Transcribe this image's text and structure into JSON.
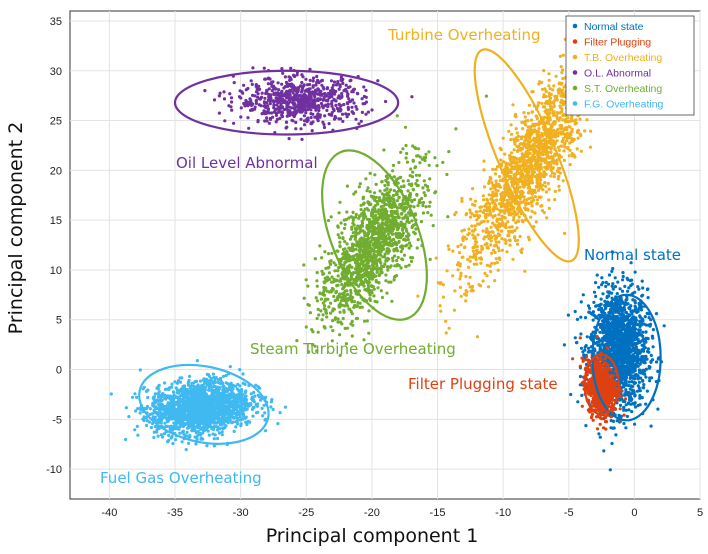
{
  "chart_data": {
    "type": "scatter",
    "title": "",
    "xlabel": "Principal component 1",
    "ylabel": "Principal component 2",
    "xlim": [
      -43,
      5
    ],
    "ylim": [
      -13,
      36
    ],
    "xticks": [
      -40,
      -35,
      -30,
      -25,
      -20,
      -15,
      -10,
      -5,
      0,
      5
    ],
    "yticks": [
      -10,
      -5,
      0,
      5,
      10,
      15,
      20,
      25,
      30,
      35
    ],
    "grid": true,
    "legend_position": "top-right",
    "series": [
      {
        "name": "Normal state",
        "label": "Normal state",
        "color": "#0070C0",
        "n": 1700,
        "center": [
          -1.2,
          2.0
        ],
        "radii": [
          2.2,
          6.0
        ],
        "angle_deg": 0,
        "ellipse": {
          "center": [
            -0.6,
            1.2
          ],
          "rx": 2.6,
          "ry": 6.3,
          "angle_deg": 0
        }
      },
      {
        "name": "Filter Plugging",
        "label": "Filter Plugging state",
        "color": "#E04010",
        "n": 800,
        "center": [
          -2.6,
          -1.7
        ],
        "radii": [
          1.1,
          2.8
        ],
        "angle_deg": 5,
        "ellipse": {
          "center": [
            -2.5,
            -1.5
          ],
          "rx": 1.3,
          "ry": 3.0,
          "angle_deg": 0
        }
      },
      {
        "name": "T.B. Overheating",
        "label": "Turbine Overheating",
        "color": "#F0B020",
        "n": 1600,
        "center": [
          -8.0,
          20.5
        ],
        "radii": [
          2.4,
          11.5
        ],
        "angle_deg": -23,
        "ellipse": {
          "center": [
            -8.2,
            21.5
          ],
          "rx": 2.2,
          "ry": 11.5,
          "angle_deg": -23
        }
      },
      {
        "name": "O.L. Abnormal",
        "label": "Oil Level Abnormal",
        "color": "#7030A0",
        "n": 700,
        "center": [
          -25.5,
          27.0
        ],
        "radii": [
          4.8,
          2.3
        ],
        "angle_deg": 0,
        "ellipse": {
          "center": [
            -26.5,
            26.8
          ],
          "rx": 8.5,
          "ry": 3.2,
          "angle_deg": 0
        }
      },
      {
        "name": "S.T. Overheating",
        "label": "Steam Turbine Overheating",
        "color": "#70AD30",
        "n": 1400,
        "center": [
          -20.0,
          12.5
        ],
        "radii": [
          2.6,
          8.0
        ],
        "angle_deg": -22,
        "ellipse": {
          "center": [
            -19.8,
            13.5
          ],
          "rx": 3.3,
          "ry": 9.0,
          "angle_deg": -22
        }
      },
      {
        "name": "F.G. Overheating",
        "label": "Fuel Gas Overheating",
        "color": "#40B8F0",
        "n": 1800,
        "center": [
          -33.0,
          -3.8
        ],
        "radii": [
          3.8,
          2.6
        ],
        "angle_deg": 12,
        "ellipse": {
          "center": [
            -32.8,
            -3.5
          ],
          "rx": 5.0,
          "ry": 3.8,
          "angle_deg": 12
        }
      }
    ]
  }
}
